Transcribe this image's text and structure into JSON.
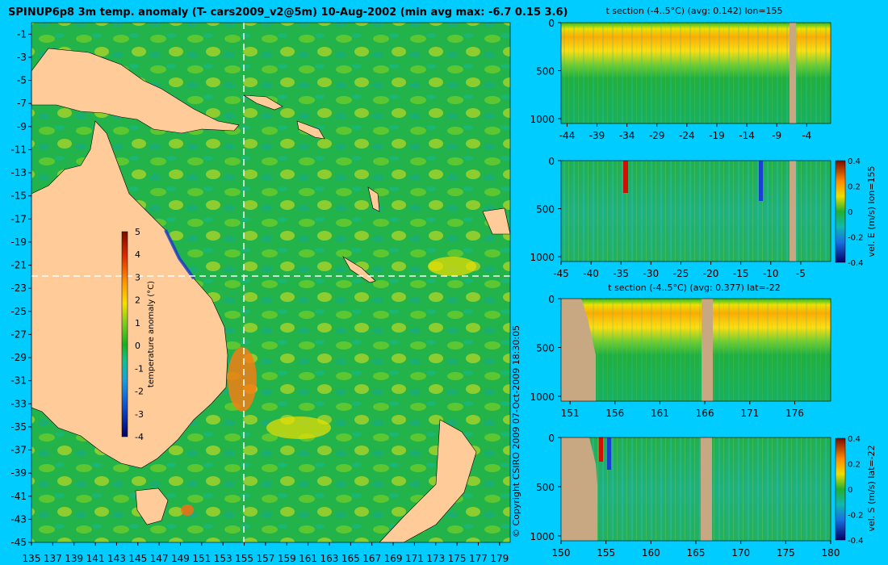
{
  "title": "SPINUP6p8 3m temp. anomaly (T- cars2009_v2@5m) 10-Aug-2002 (min avg max: -6.7 0.15 3.6)",
  "copyright": "© Copyright CSIRO 2009   07-Oct-2009 18:30:05",
  "colors": {
    "background": "#00ccff",
    "land": "#ffcc99",
    "section_land": "#c8a882"
  },
  "map": {
    "lon_ticks": [
      135,
      137,
      139,
      141,
      143,
      145,
      147,
      149,
      151,
      153,
      155,
      157,
      159,
      161,
      163,
      165,
      167,
      169,
      171,
      173,
      175,
      177,
      179
    ],
    "lat_ticks": [
      -1,
      -3,
      -5,
      -7,
      -9,
      -11,
      -13,
      -15,
      -17,
      -19,
      -21,
      -23,
      -25,
      -27,
      -29,
      -31,
      -33,
      -35,
      -37,
      -39,
      -41,
      -43,
      -45
    ],
    "xlim": [
      135,
      180
    ],
    "ylim": [
      -45,
      0
    ],
    "crosshair_lon": 155,
    "crosshair_lat": -22,
    "colorbar": {
      "label": "temperature anomaly (°C)",
      "ticks": [
        5,
        4,
        3,
        2,
        1,
        0,
        -1,
        -2,
        -3,
        -4
      ]
    }
  },
  "chart_data": [
    {
      "type": "heatmap",
      "title": "t section (-4..5°C) (avg: 0.142) lon=155",
      "ylim": [
        1050,
        0
      ],
      "x_ticks": [
        -44,
        -39,
        -34,
        -29,
        -24,
        -19,
        -14,
        -9,
        -4
      ],
      "y_ticks": [
        0,
        500,
        1000
      ],
      "xlim": [
        -45,
        0
      ]
    },
    {
      "type": "heatmap",
      "title": "",
      "colorbar_label": "vel. E (m/s) lon=155",
      "ylim": [
        1050,
        0
      ],
      "x_ticks": [
        -45,
        -40,
        -35,
        -30,
        -25,
        -20,
        -15,
        -10,
        -5
      ],
      "y_ticks": [
        0,
        500,
        1000
      ],
      "xlim": [
        -45,
        0
      ],
      "cbar_ticks": [
        "0.4",
        "0.2",
        "0",
        "-0.2",
        "-0.4"
      ]
    },
    {
      "type": "heatmap",
      "title": "t section (-4..5°C) (avg: 0.377) lat=-22",
      "ylim": [
        1050,
        0
      ],
      "x_ticks": [
        151,
        156,
        161,
        166,
        171,
        176
      ],
      "y_ticks": [
        0,
        500,
        1000
      ],
      "xlim": [
        150,
        180
      ]
    },
    {
      "type": "heatmap",
      "title": "",
      "colorbar_label": "vel. S (m/s) lat=-22",
      "ylim": [
        1050,
        0
      ],
      "x_ticks": [
        150,
        155,
        160,
        165,
        170,
        175,
        180
      ],
      "y_ticks": [
        0,
        500,
        1000
      ],
      "xlim": [
        150,
        180
      ],
      "cbar_ticks": [
        "0.4",
        "0.2",
        "0",
        "-0.2",
        "-0.4"
      ]
    }
  ]
}
